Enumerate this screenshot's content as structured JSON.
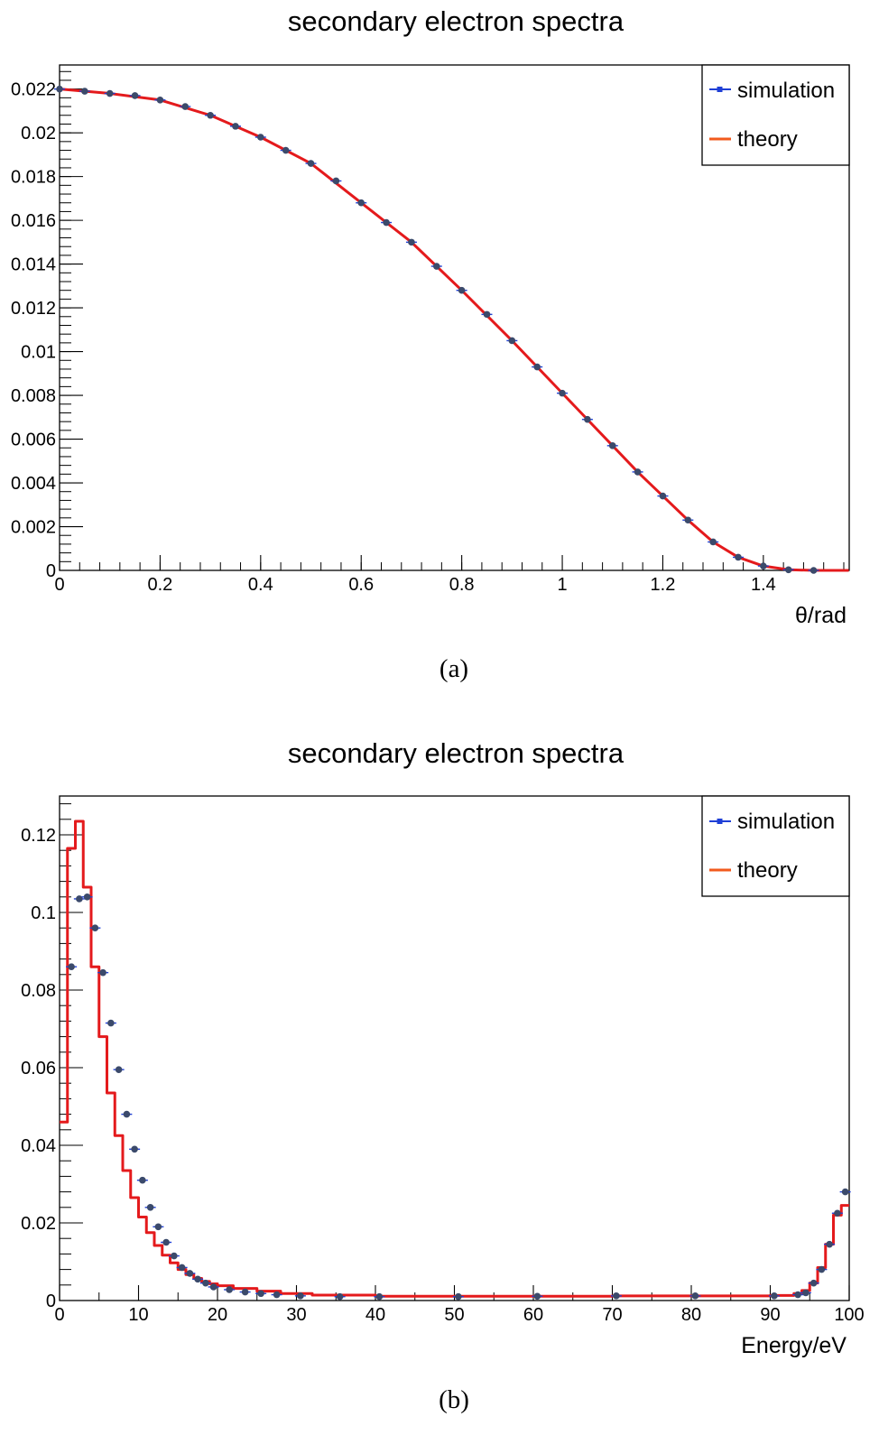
{
  "chart_data": [
    {
      "type": "line",
      "panel": "(a)",
      "title": "secondary electron spectra",
      "xlabel": "θ/rad",
      "ylabel": "",
      "xlim": [
        0,
        1.5708
      ],
      "ylim": [
        0,
        0.0231
      ],
      "x_ticks": [
        0,
        0.2,
        0.4,
        0.6,
        0.8,
        1,
        1.2,
        1.4
      ],
      "y_ticks": [
        0,
        0.002,
        0.004,
        0.006,
        0.008,
        0.01,
        0.012,
        0.014,
        0.016,
        0.018,
        0.02,
        0.022
      ],
      "legend": {
        "placement": "top-right",
        "entries": [
          "simulation",
          "theory"
        ]
      },
      "series": [
        {
          "name": "simulation",
          "style": "markers",
          "color": "#3b4a6b",
          "x": [
            0.0,
            0.05,
            0.1,
            0.15,
            0.2,
            0.25,
            0.3,
            0.35,
            0.4,
            0.45,
            0.5,
            0.55,
            0.6,
            0.65,
            0.7,
            0.75,
            0.8,
            0.85,
            0.9,
            0.95,
            1.0,
            1.05,
            1.1,
            1.15,
            1.2,
            1.25,
            1.3,
            1.35,
            1.4,
            1.45,
            1.5
          ],
          "values": [
            0.022,
            0.0219,
            0.0218,
            0.0217,
            0.0215,
            0.0212,
            0.0208,
            0.0203,
            0.0198,
            0.0192,
            0.0186,
            0.0178,
            0.0168,
            0.0159,
            0.015,
            0.0139,
            0.0128,
            0.0117,
            0.0105,
            0.0093,
            0.0081,
            0.0069,
            0.0057,
            0.0045,
            0.0034,
            0.0023,
            0.0013,
            0.0006,
            0.0002,
            3e-05,
            0.0
          ]
        },
        {
          "name": "theory",
          "style": "line",
          "color": "#e41a1c",
          "x": [
            0.0,
            0.1,
            0.2,
            0.3,
            0.4,
            0.5,
            0.6,
            0.7,
            0.8,
            0.9,
            1.0,
            1.05,
            1.1,
            1.15,
            1.2,
            1.25,
            1.3,
            1.35,
            1.4,
            1.45,
            1.5,
            1.57
          ],
          "values": [
            0.022,
            0.0218,
            0.0215,
            0.0208,
            0.0198,
            0.0186,
            0.0168,
            0.015,
            0.0128,
            0.0105,
            0.0081,
            0.0069,
            0.0057,
            0.0045,
            0.0034,
            0.0023,
            0.0013,
            0.0006,
            0.0002,
            3e-05,
            0.0,
            0.0
          ]
        }
      ]
    },
    {
      "type": "line",
      "panel": "(b)",
      "title": "secondary electron spectra",
      "xlabel": "Energy/eV",
      "ylabel": "",
      "xlim": [
        0,
        100
      ],
      "ylim": [
        0,
        0.13
      ],
      "x_ticks": [
        0,
        10,
        20,
        30,
        40,
        50,
        60,
        70,
        80,
        90,
        100
      ],
      "y_ticks": [
        0,
        0.02,
        0.04,
        0.06,
        0.08,
        0.1,
        0.12
      ],
      "legend": {
        "placement": "top-right",
        "entries": [
          "simulation",
          "theory"
        ]
      },
      "series": [
        {
          "name": "simulation",
          "style": "markers",
          "color": "#3b4a6b",
          "x": [
            1.5,
            2.5,
            3.5,
            4.5,
            5.5,
            6.5,
            7.5,
            8.5,
            9.5,
            10.5,
            11.5,
            12.5,
            13.5,
            14.5,
            15.5,
            16.5,
            17.5,
            18.5,
            19.5,
            21.5,
            23.5,
            25.5,
            27.5,
            30.5,
            35.5,
            40.5,
            50.5,
            60.5,
            70.5,
            80.5,
            90.5,
            93.5,
            94.5,
            95.5,
            96.5,
            97.5,
            98.5,
            99.5
          ],
          "values": [
            0.086,
            0.1035,
            0.104,
            0.096,
            0.0845,
            0.0715,
            0.0595,
            0.048,
            0.039,
            0.031,
            0.024,
            0.019,
            0.015,
            0.0115,
            0.0085,
            0.007,
            0.0055,
            0.0045,
            0.0035,
            0.0028,
            0.0022,
            0.0018,
            0.0015,
            0.0012,
            0.001,
            0.001,
            0.001,
            0.0011,
            0.0012,
            0.0012,
            0.0012,
            0.0015,
            0.002,
            0.0045,
            0.008,
            0.0145,
            0.0225,
            0.028
          ]
        },
        {
          "name": "theory",
          "style": "step",
          "color": "#e41a1c",
          "x": [
            0,
            1,
            2,
            3,
            4,
            5,
            6,
            7,
            8,
            9,
            10,
            11,
            12,
            13,
            14,
            15,
            16,
            17,
            18,
            19,
            20,
            22,
            25,
            28,
            32,
            40,
            50,
            60,
            70,
            80,
            90,
            93,
            94,
            95,
            96,
            97,
            98,
            99
          ],
          "values": [
            0.046,
            0.1165,
            0.1235,
            0.1065,
            0.086,
            0.068,
            0.0535,
            0.0425,
            0.0335,
            0.0265,
            0.0215,
            0.0175,
            0.0142,
            0.0117,
            0.0097,
            0.008,
            0.0067,
            0.0057,
            0.0049,
            0.0043,
            0.0038,
            0.0031,
            0.0024,
            0.0018,
            0.0014,
            0.0011,
            0.0011,
            0.0011,
            0.0012,
            0.0012,
            0.0013,
            0.0018,
            0.0026,
            0.0045,
            0.0085,
            0.0145,
            0.022,
            0.0245
          ]
        }
      ]
    }
  ],
  "captions": [
    "(a)",
    "(b)"
  ]
}
